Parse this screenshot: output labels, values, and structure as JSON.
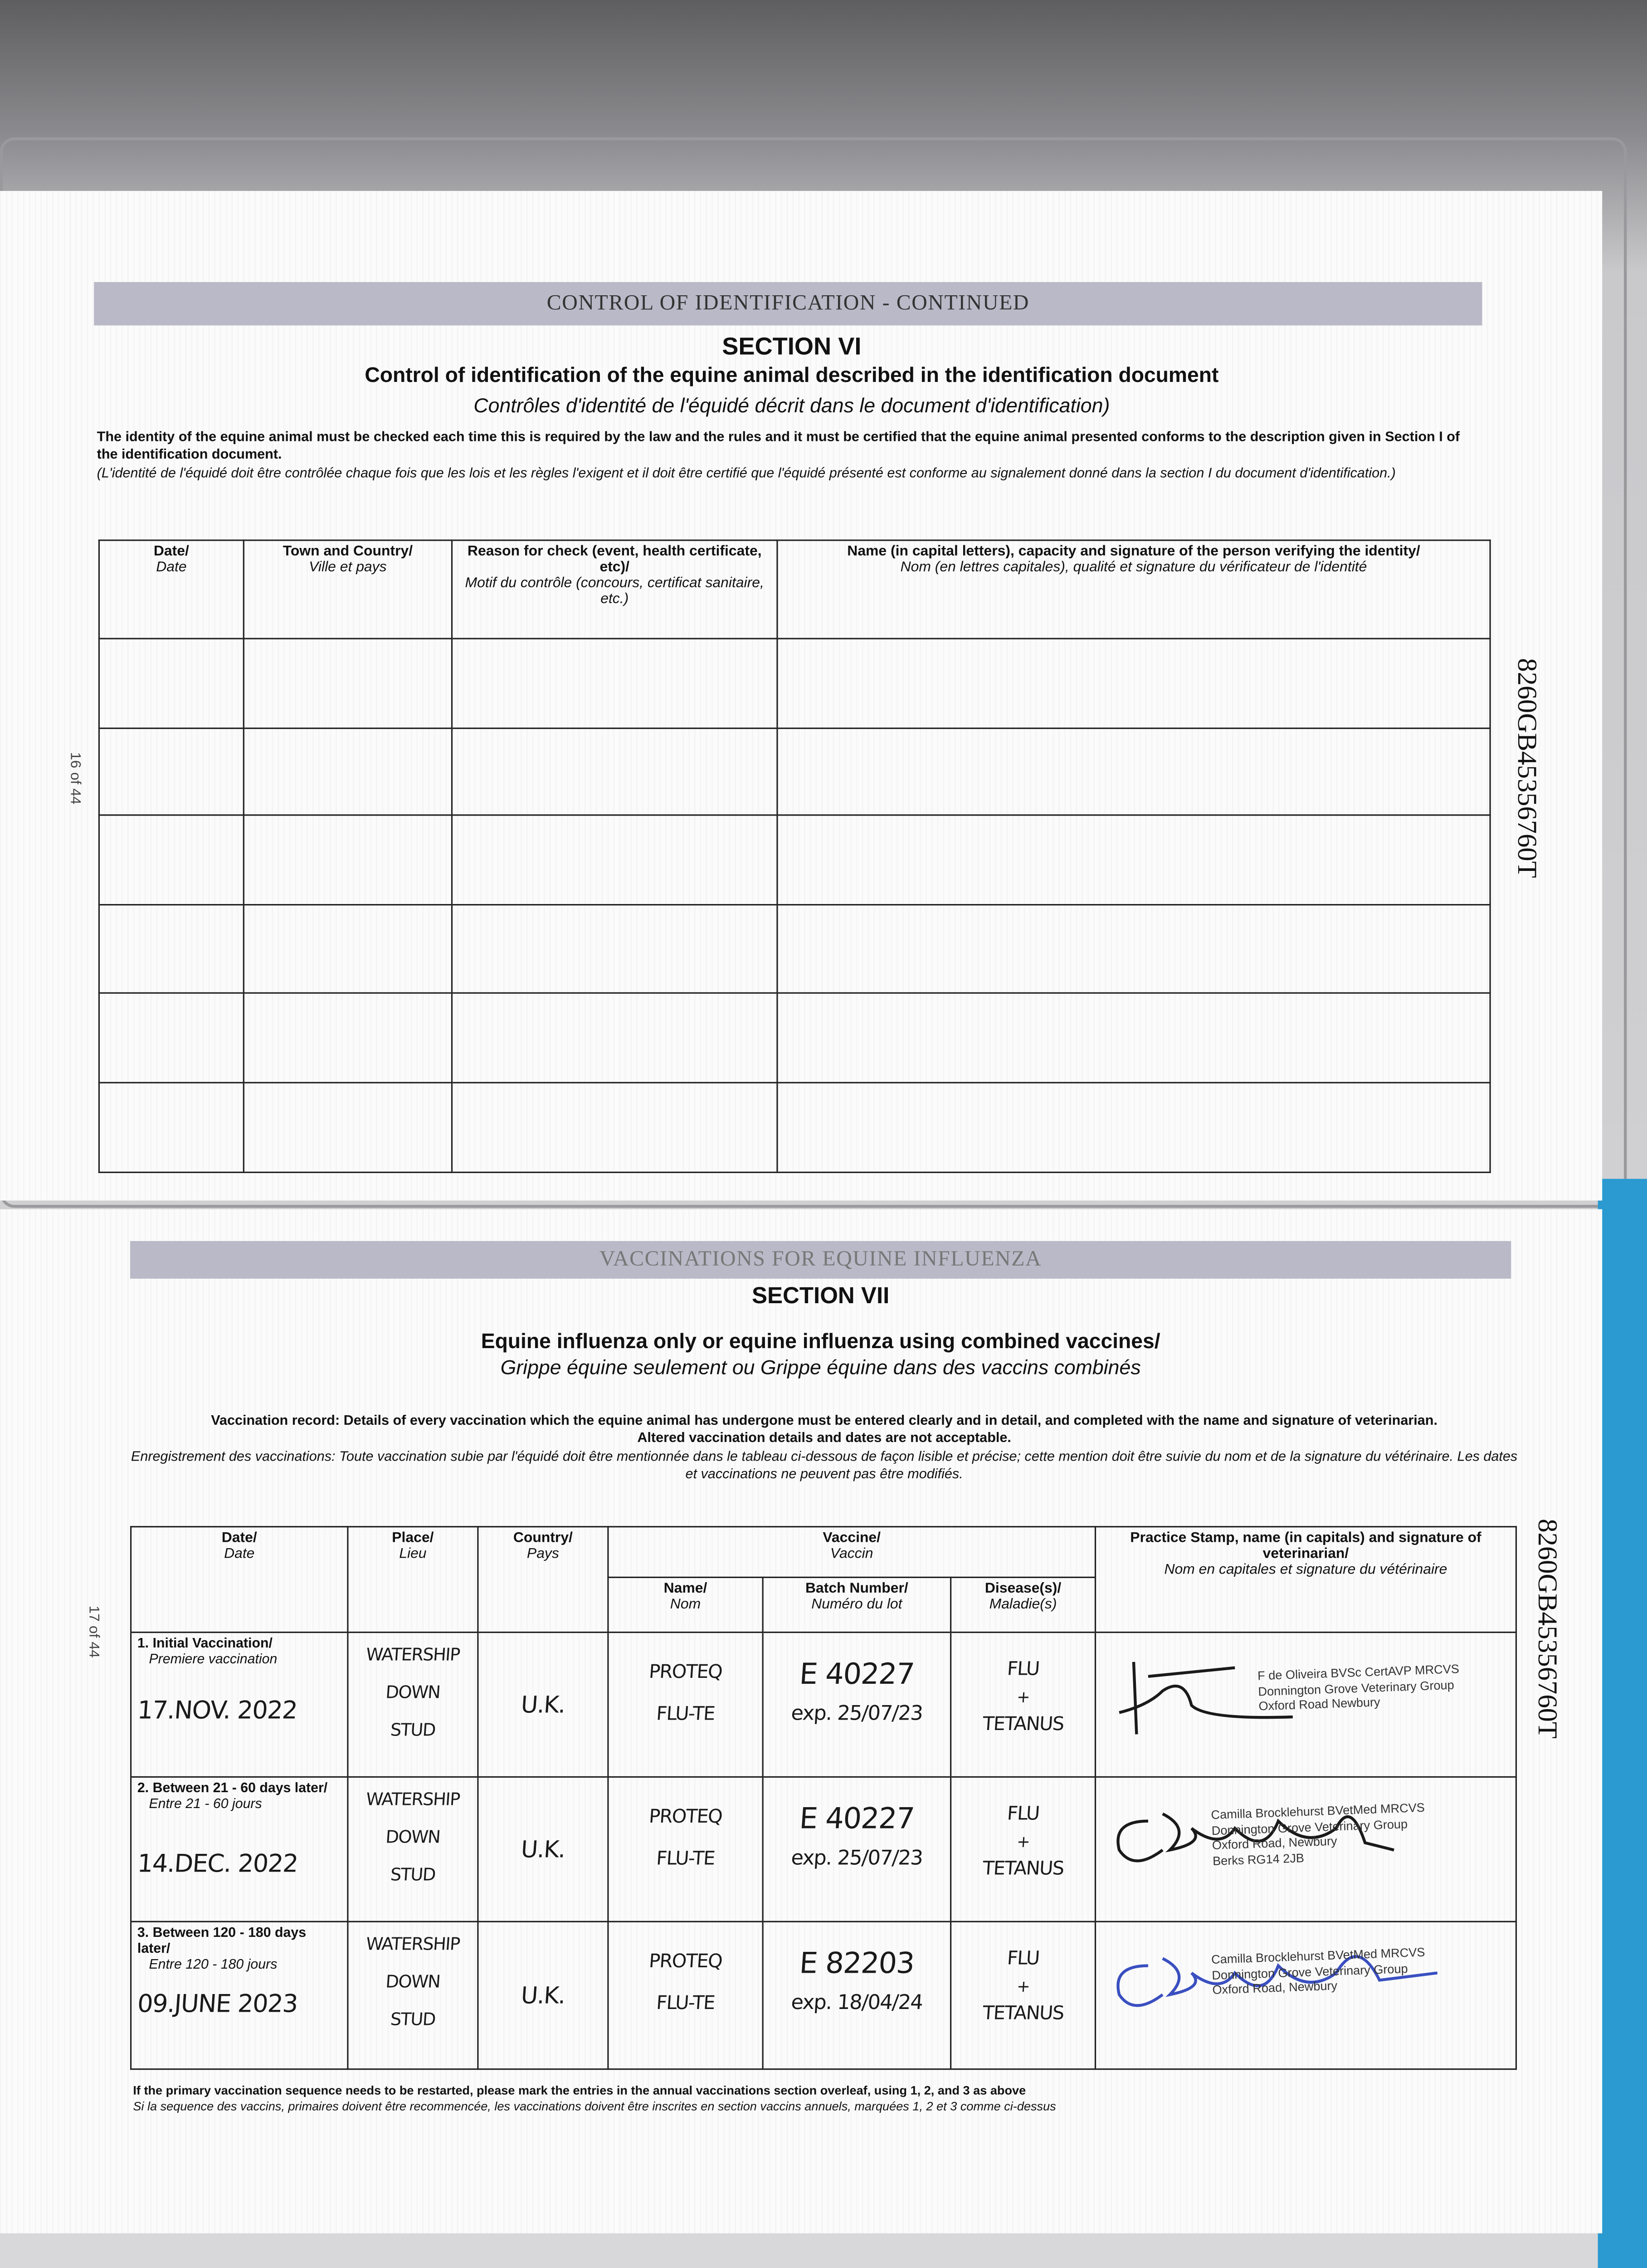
{
  "page16": {
    "band": "CONTROL OF IDENTIFICATION - CONTINUED",
    "section": "SECTION VI",
    "title": "Control of identification of the equine animal described in the identification document",
    "title_fr": "Contrôles d'identité de l'équidé décrit dans le document d'identification)",
    "intro": "The identity of the equine animal must be checked each time this is required by the law and the rules and it must be certified that the equine animal presented conforms to the description given in Section I of the identification document.",
    "intro_fr": "(L'identité de l'équidé doit être contrôlée chaque fois que les lois et les règles l'exigent et il doit être certifié que l'équidé présenté est conforme au signalement donné dans la section I du document d'identification.)",
    "page_number": "16 of 44",
    "passport_id": "8260GB45356760T",
    "table_headers": [
      {
        "en": "Date/",
        "fr": "Date"
      },
      {
        "en": "Town and Country/",
        "fr": "Ville et pays"
      },
      {
        "en": "Reason for check (event, health certificate, etc)/",
        "fr": "Motif du contrôle (concours, certificat sanitaire, etc.)"
      },
      {
        "en": "Name (in capital letters), capacity and signature of the person verifying the identity/",
        "fr": "Nom (en lettres capitales), qualité et signature du vérificateur de l'identité"
      }
    ],
    "empty_rows": 6
  },
  "page17": {
    "band": "VACCINATIONS FOR EQUINE INFLUENZA",
    "section": "SECTION VII",
    "title": "Equine influenza only or equine influenza using combined vaccines/",
    "title_fr": "Grippe équine seulement ou Grippe équine dans des vaccins combinés",
    "intro": "Vaccination record: Details of every vaccination which the equine animal has undergone must be entered clearly and in detail, and completed with the name and signature of veterinarian.",
    "intro2": "Altered vaccination details and dates are not acceptable.",
    "intro_fr": "Enregistrement des vaccinations: Toute vaccination subie par l'équidé doit être mentionnée dans le tableau ci-dessous de façon lisible et précise; cette mention doit être suivie du nom et de la signature du vétérinaire. Les dates et vaccinations ne peuvent pas être modifiés.",
    "page_number": "17 of 44",
    "passport_id": "8260GB45356760T",
    "headers": {
      "date": {
        "en": "Date/",
        "fr": "Date"
      },
      "place": {
        "en": "Place/",
        "fr": "Lieu"
      },
      "country": {
        "en": "Country/",
        "fr": "Pays"
      },
      "vaccine": {
        "en": "Vaccine/",
        "fr": "Vaccin"
      },
      "name": {
        "en": "Name/",
        "fr": "Nom"
      },
      "batch": {
        "en": "Batch Number/",
        "fr": "Numéro du lot"
      },
      "disease": {
        "en": "Disease(s)/",
        "fr": "Maladie(s)"
      },
      "stamp": {
        "en": "Practice Stamp, name (in capitals) and signature of veterinarian/",
        "fr": "Nom en capitales et signature du vétérinaire"
      }
    },
    "rows": [
      {
        "label": "1. Initial Vaccination/",
        "label_fr": "Premiere vaccination",
        "date": "17.NOV. 2022",
        "place": [
          "WATERSHIP",
          "DOWN",
          "STUD"
        ],
        "country": "U.K.",
        "vaccine": [
          "PROTEQ",
          "FLU-TE"
        ],
        "batch": "E 40227",
        "expiry": "exp. 25/07/23",
        "disease": [
          "FLU",
          "+",
          "TETANUS"
        ],
        "stamp": [
          "F de Oliveira BVSc CertAVP MRCVS",
          "Donnington Grove Veterinary Group",
          "Oxford Road Newbury"
        ],
        "ink": "#1a1a1a"
      },
      {
        "label": "2. Between 21 - 60 days later/",
        "label_fr": "Entre 21 - 60 jours",
        "date": "14.DEC. 2022",
        "place": [
          "WATERSHIP",
          "DOWN",
          "STUD"
        ],
        "country": "U.K.",
        "vaccine": [
          "PROTEQ",
          "FLU-TE"
        ],
        "batch": "E 40227",
        "expiry": "exp. 25/07/23",
        "disease": [
          "FLU",
          "+",
          "TETANUS"
        ],
        "stamp": [
          "Camilla Brocklehurst BVetMed MRCVS",
          "Donnington Grove Veterinary Group",
          "Oxford Road, Newbury",
          "Berks RG14 2JB"
        ],
        "ink": "#1a1a1a"
      },
      {
        "label": "3. Between 120 - 180 days later/",
        "label_fr": "Entre 120 - 180 jours",
        "date": "09.JUNE 2023",
        "place": [
          "WATERSHIP",
          "DOWN",
          "STUD"
        ],
        "country": "U.K.",
        "vaccine": [
          "PROTEQ",
          "FLU-TE"
        ],
        "batch": "E 82203",
        "expiry": "exp. 18/04/24",
        "disease": [
          "FLU",
          "+",
          "TETANUS"
        ],
        "stamp": [
          "Camilla Brocklehurst BVetMed MRCVS",
          "Donnington Grove Veterinary Group",
          "Oxford Road, Newbury"
        ],
        "ink": "#3a4fc0"
      }
    ],
    "footnote": "If the primary vaccination sequence needs to be restarted, please mark the entries in the annual vaccinations section overleaf, using 1, 2, and 3 as above",
    "footnote_fr": "Si la sequence des vaccins, primaires doivent être recommencée, les vaccinations doivent être inscrites en section vaccins annuels, marquées 1, 2 et 3 comme ci-dessus"
  }
}
